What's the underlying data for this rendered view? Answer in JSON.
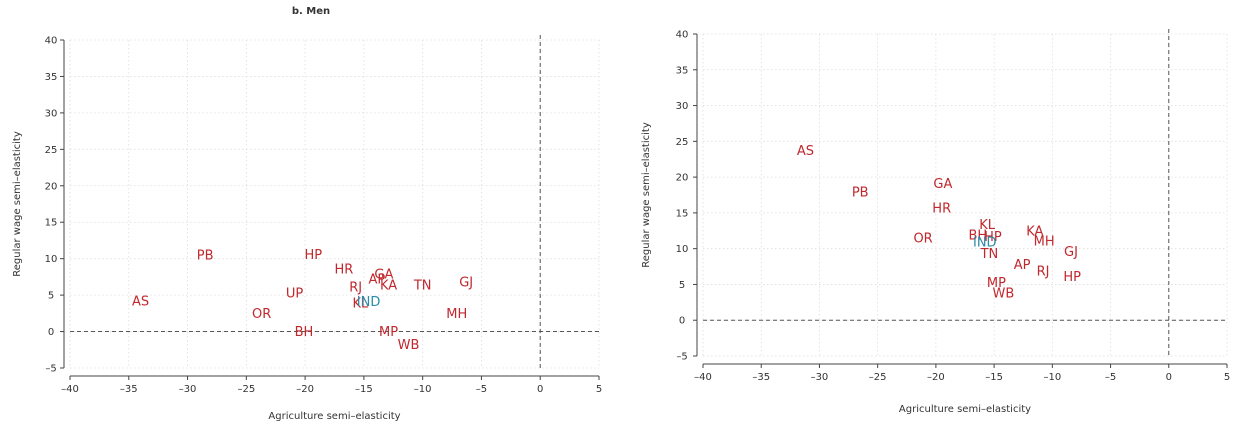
{
  "colors": {
    "state": "#c0282d",
    "india": "#2b8aa8"
  },
  "chart_data": [
    {
      "type": "scatter",
      "title": "b. Men",
      "xlabel": "Agriculture semi–elasticity",
      "ylabel": "Regular wage semi–elasticity",
      "xlim": [
        -40,
        5
      ],
      "ylim": [
        -5,
        40
      ],
      "xticks": [
        "–40",
        "–35",
        "–30",
        "–25",
        "–20",
        "–15",
        "–10",
        "–5",
        "0",
        "5"
      ],
      "yticks": [
        "–5",
        "0",
        "5",
        "10",
        "15",
        "20",
        "25",
        "30",
        "35",
        "40"
      ],
      "grid": true,
      "reference_lines": {
        "x": 0,
        "y": 0
      },
      "points": [
        {
          "label": "PB",
          "x": -28.5,
          "y": 10.5
        },
        {
          "label": "AS",
          "x": -34,
          "y": 4.2
        },
        {
          "label": "HP",
          "x": -19.3,
          "y": 10.6
        },
        {
          "label": "HR",
          "x": -16.7,
          "y": 8.6
        },
        {
          "label": "UP",
          "x": -20.9,
          "y": 5.3
        },
        {
          "label": "OR",
          "x": -23.7,
          "y": 2.5
        },
        {
          "label": "BH",
          "x": -20.1,
          "y": 0
        },
        {
          "label": "RJ",
          "x": -15.7,
          "y": 6.1
        },
        {
          "label": "GA",
          "x": -13.3,
          "y": 7.9
        },
        {
          "label": "AP",
          "x": -13.9,
          "y": 7.2
        },
        {
          "label": "KA",
          "x": -12.9,
          "y": 6.4
        },
        {
          "label": "TN",
          "x": -10,
          "y": 6.4
        },
        {
          "label": "GJ",
          "x": -6.3,
          "y": 6.8
        },
        {
          "label": "KL",
          "x": -15.3,
          "y": 3.9
        },
        {
          "label": "IND",
          "x": -14.6,
          "y": 4.1,
          "highlight": true
        },
        {
          "label": "MH",
          "x": -7.1,
          "y": 2.5
        },
        {
          "label": "MP",
          "x": -12.9,
          "y": 0
        },
        {
          "label": "WB",
          "x": -11.2,
          "y": -1.8
        }
      ]
    },
    {
      "type": "scatter",
      "title": "",
      "xlabel": "Agriculture semi–elasticity",
      "ylabel": "Regular wage semi–elasticity",
      "xlim": [
        -40,
        5
      ],
      "ylim": [
        -5,
        40
      ],
      "xticks": [
        "–40",
        "–35",
        "–30",
        "–25",
        "–20",
        "–15",
        "–10",
        "–5",
        "0",
        "5"
      ],
      "yticks": [
        "–5",
        "0",
        "5",
        "10",
        "15",
        "20",
        "25",
        "30",
        "35",
        "40"
      ],
      "grid": true,
      "reference_lines": {
        "x": 0,
        "y": 0
      },
      "points": [
        {
          "label": "AS",
          "x": -31.2,
          "y": 23.7
        },
        {
          "label": "PB",
          "x": -26.5,
          "y": 17.9
        },
        {
          "label": "GA",
          "x": -19.4,
          "y": 19.1
        },
        {
          "label": "HR",
          "x": -19.5,
          "y": 15.7
        },
        {
          "label": "KL",
          "x": -15.6,
          "y": 13.4
        },
        {
          "label": "BH",
          "x": -16.4,
          "y": 11.9
        },
        {
          "label": "HP",
          "x": -15.1,
          "y": 11.7
        },
        {
          "label": "OR",
          "x": -21.1,
          "y": 11.5
        },
        {
          "label": "IND",
          "x": -15.8,
          "y": 10.9,
          "highlight": true
        },
        {
          "label": "TN",
          "x": -15.4,
          "y": 9.3
        },
        {
          "label": "KA",
          "x": -11.5,
          "y": 12.5
        },
        {
          "label": "MH",
          "x": -10.7,
          "y": 11.1
        },
        {
          "label": "GJ",
          "x": -8.4,
          "y": 9.6
        },
        {
          "label": "AP",
          "x": -12.6,
          "y": 7.8
        },
        {
          "label": "RJ",
          "x": -10.8,
          "y": 6.9
        },
        {
          "label": "HP",
          "x": -8.3,
          "y": 6.1
        },
        {
          "label": "MP",
          "x": -14.8,
          "y": 5.3
        },
        {
          "label": "WB",
          "x": -14.2,
          "y": 3.8
        }
      ]
    }
  ]
}
